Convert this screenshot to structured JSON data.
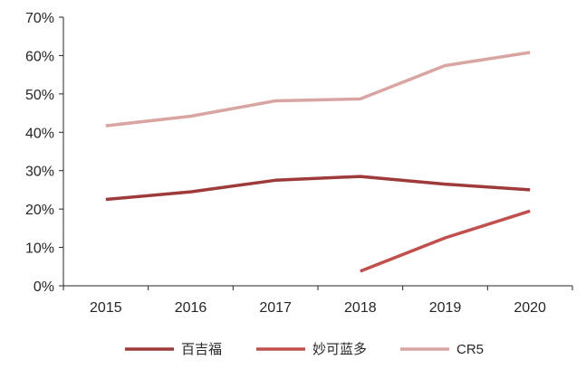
{
  "chart_data": {
    "type": "line",
    "title": "",
    "xlabel": "",
    "ylabel": "",
    "categories": [
      "2015",
      "2016",
      "2017",
      "2018",
      "2019",
      "2020"
    ],
    "ylim": [
      0,
      70
    ],
    "y_ticks": [
      "0%",
      "10%",
      "20%",
      "30%",
      "40%",
      "50%",
      "60%",
      "70%"
    ],
    "y_unit": "%",
    "grid": false,
    "legend_position": "bottom",
    "series": [
      {
        "name": "百吉福",
        "color": "#9E3A3A",
        "values": [
          22.5,
          24.5,
          27.5,
          28.5,
          26.5,
          25.0
        ]
      },
      {
        "name": "妙可蓝多",
        "color": "#C0504D",
        "values": [
          null,
          null,
          null,
          3.8,
          12.5,
          19.5
        ]
      },
      {
        "name": "CR5",
        "color": "#D9A5A3",
        "values": [
          41.7,
          44.2,
          48.2,
          48.7,
          57.4,
          60.8
        ]
      }
    ]
  }
}
